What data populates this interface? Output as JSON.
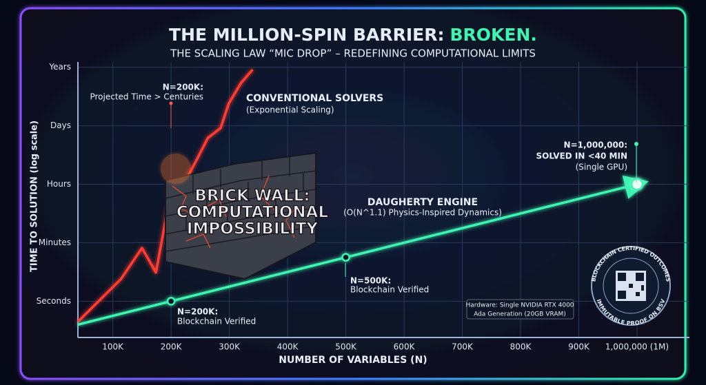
{
  "chart_data": {
    "type": "line",
    "title": "THE MILLION-SPIN BARRIER:",
    "title_highlight": "BROKEN.",
    "subtitle": "THE SCALING LAW “MIC DROP” – REDEFINING COMPUTATIONAL LIMITS",
    "x_label": "NUMBER OF VARIABLES (N)",
    "y_label": "TIME TO SOLUTION (log scale)",
    "xlim": [
      40000,
      1090000
    ],
    "xticks": [
      {
        "value": 100000,
        "label": "100K"
      },
      {
        "value": 200000,
        "label": "200K"
      },
      {
        "value": 300000,
        "label": "300K"
      },
      {
        "value": 400000,
        "label": "400K"
      },
      {
        "value": 500000,
        "label": "500K"
      },
      {
        "value": 600000,
        "label": "600K"
      },
      {
        "value": 700000,
        "label": "700K"
      },
      {
        "value": 800000,
        "label": "800K"
      },
      {
        "value": 900000,
        "label": "900K"
      },
      {
        "value": 1000000,
        "label": "1,000,000 (1M)"
      }
    ],
    "ylim": [
      -0.62,
      4.09
    ],
    "yticks": [
      {
        "value": 0,
        "label": "Seconds"
      },
      {
        "value": 1,
        "label": "Minutes"
      },
      {
        "value": 2,
        "label": "Hours"
      },
      {
        "value": 3,
        "label": "Days"
      },
      {
        "value": 4,
        "label": "Years"
      }
    ],
    "grid": true,
    "series": [
      {
        "name": "CONVENTIONAL SOLVERS",
        "color": "#ff3b30",
        "x": [
          40000,
          114000,
          150000,
          174000,
          198000,
          225000,
          245000,
          263000,
          285000,
          299000,
          320000,
          340000
        ],
        "values": [
          -0.35,
          0.38,
          0.91,
          0.49,
          1.79,
          2.06,
          2.44,
          2.79,
          2.96,
          3.38,
          3.73,
          3.96
        ]
      },
      {
        "name": "DAUGHERTY ENGINE",
        "color": "#3df5b0",
        "x": [
          40000,
          200000,
          500000,
          1000000
        ],
        "values": [
          -0.4,
          0,
          0.75,
          2
        ]
      }
    ],
    "annotations": [
      {
        "lines": [
          "N=200K:",
          "Projected Time > Centuries"
        ]
      },
      {
        "lines": [
          "(Exponential Scaling)"
        ]
      },
      {
        "lines": [
          "BRICK WALL:",
          "COMPUTATIONAL",
          "IMPOSSIBILITY"
        ]
      },
      {
        "lines": [
          "(O(N^1.1) Physics-Inspired Dynamics)"
        ]
      },
      {
        "lines": [
          "N=500K:",
          "Blockchain Verified"
        ]
      },
      {
        "lines": [
          "N=200K:",
          "Blockchain Verified"
        ]
      },
      {
        "lines": [
          "N=1,000,000:",
          "SOLVED IN <40 MIN",
          "(Single GPU)"
        ]
      },
      {
        "lines": [
          "Hardware: Single NVIDIA RTX 4000",
          "Ada Generation (20GB VRAM)"
        ]
      },
      {
        "lines": [
          "BLOCKCHAIN CERTIFIED OUTCOMES",
          "IMMUTABLE PROOF ON BSV"
        ]
      }
    ]
  }
}
